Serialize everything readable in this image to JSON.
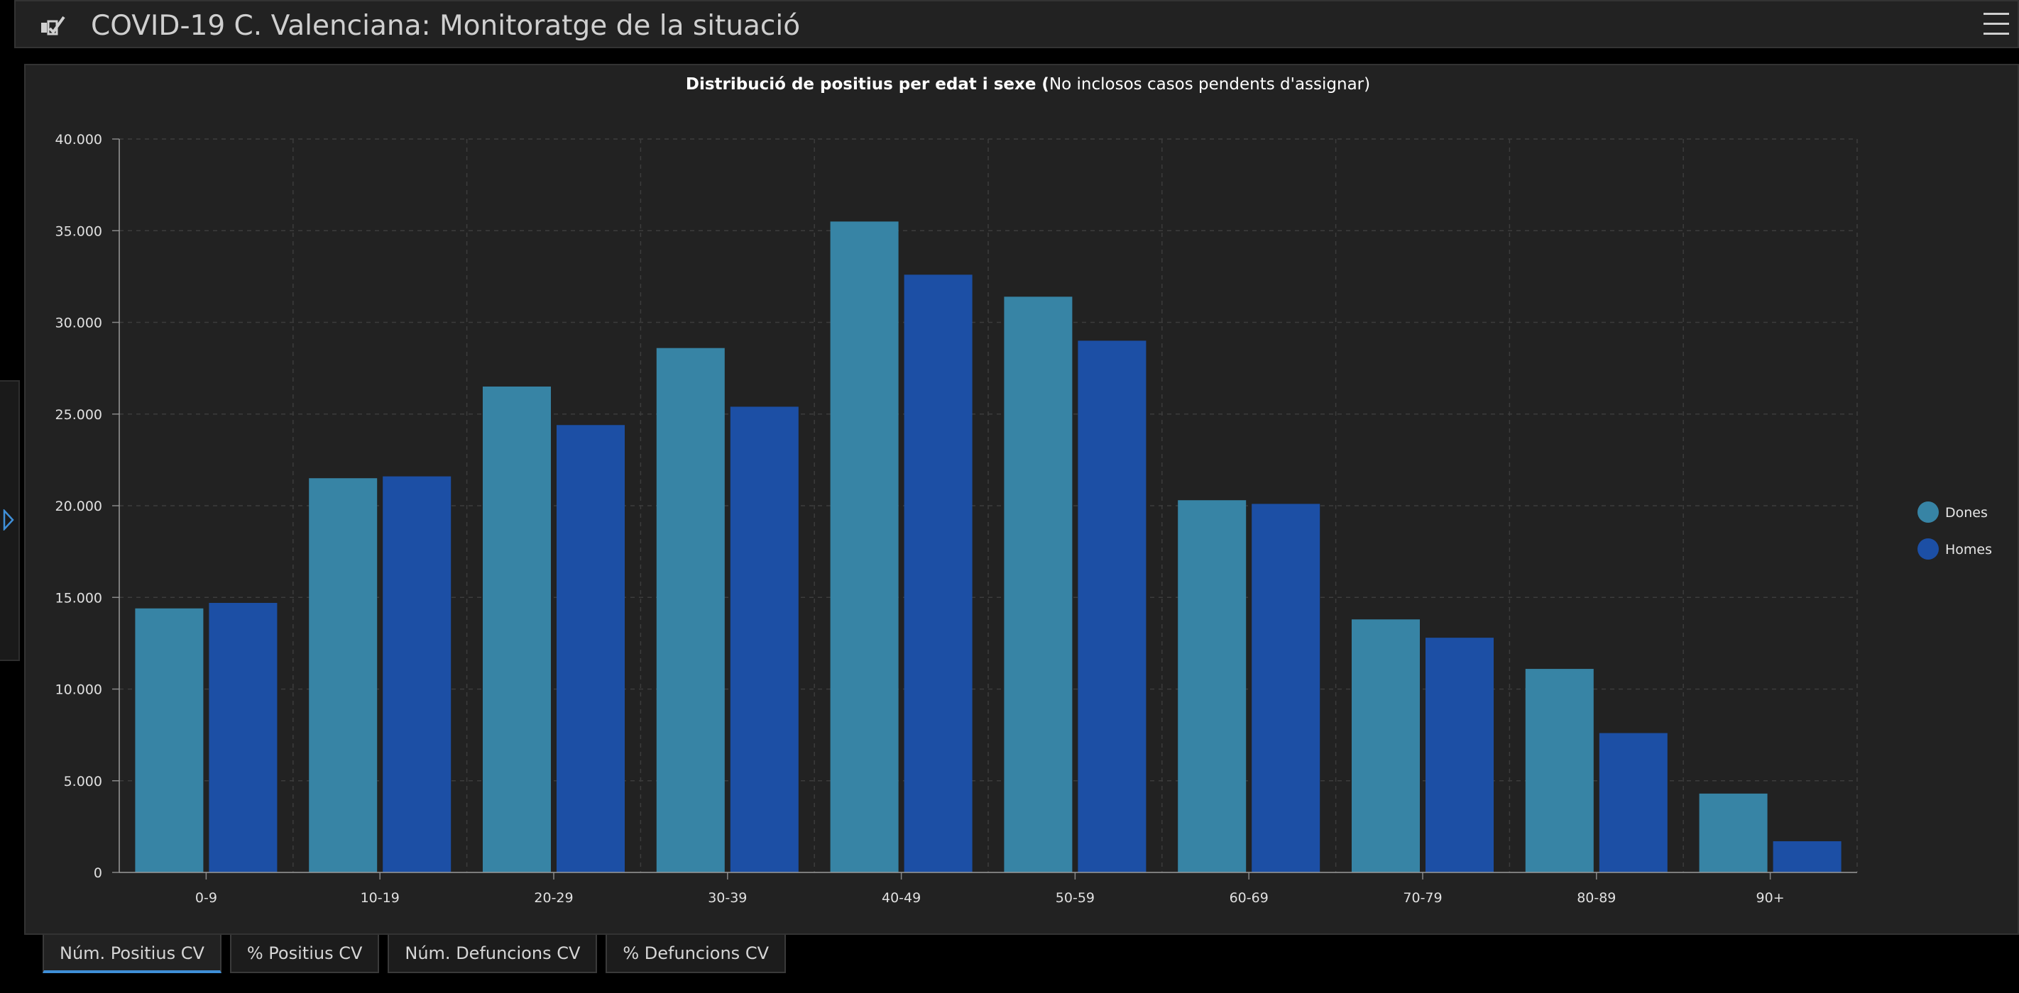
{
  "header": {
    "title": "COVID-19 C. Valenciana: Monitoratge de la situació",
    "logo_icon": "dashboard-logo-icon",
    "menu_icon": "hamburger-menu-icon"
  },
  "tabs": [
    {
      "label": "Núm. Positius CV",
      "active": true
    },
    {
      "label": "% Positius CV",
      "active": false
    },
    {
      "label": "Núm. Defuncions CV",
      "active": false
    },
    {
      "label": "% Defuncions CV",
      "active": false
    }
  ],
  "chart_data": {
    "type": "bar",
    "title": "Distribució de positius per edat i sexe",
    "subtitle": "No inclosos casos pendents d'assignar",
    "categories": [
      "0-9",
      "10-19",
      "20-29",
      "30-39",
      "40-49",
      "50-59",
      "60-69",
      "70-79",
      "80-89",
      "90+"
    ],
    "series": [
      {
        "name": "Dones",
        "color": "#3784a5",
        "values": [
          14400,
          21500,
          26500,
          28600,
          35500,
          31400,
          20300,
          13800,
          11100,
          4300
        ]
      },
      {
        "name": "Homes",
        "color": "#1c4fa5",
        "values": [
          14700,
          21600,
          24400,
          25400,
          32600,
          29000,
          20100,
          12800,
          7600,
          1700
        ]
      }
    ],
    "y_ticks": [
      "0",
      "5.000",
      "10.000",
      "15.000",
      "20.000",
      "25.000",
      "30.000",
      "35.000",
      "40.000"
    ],
    "ylim": [
      0,
      40000
    ],
    "grid": true,
    "legend_position": "right"
  }
}
